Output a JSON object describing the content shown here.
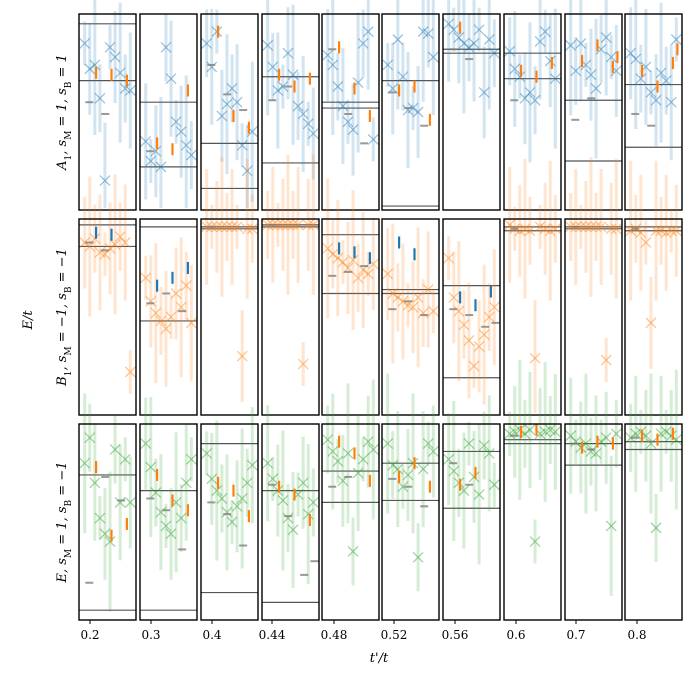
{
  "chart_data": {
    "type": "scatter",
    "xlabel": "t'/t",
    "ylabel": "E/t",
    "grid": false,
    "legend": "none",
    "x_categories": [
      "0.2",
      "0.3",
      "0.4",
      "0.44",
      "0.48",
      "0.52",
      "0.56",
      "0.6",
      "0.7",
      "0.8"
    ],
    "rows": [
      {
        "label": "A_1, s_M = 1, s_B = 1",
        "label_parts": [
          "A",
          "1",
          ", s",
          "M",
          " = 1, s",
          "B",
          " = 1"
        ],
        "color": "#1f77b4",
        "markers_per_panel": [
          [
            0.85,
            0.72,
            0.74,
            0.57,
            0.15,
            0.83,
            0.78,
            0.7,
            0.62,
            0.61
          ],
          [
            0.35,
            0.25,
            0.3,
            0.22,
            0.83,
            0.67,
            0.45,
            0.4,
            0.33,
            0.28
          ],
          [
            0.85,
            0.73,
            0.91,
            0.48,
            0.54,
            0.62,
            0.55,
            0.33,
            0.2,
            0.4
          ],
          [
            0.84,
            0.73,
            0.61,
            0.63,
            0.8,
            0.69,
            0.53,
            0.49,
            0.44,
            0.39
          ],
          [
            0.79,
            0.74,
            0.63,
            0.53,
            0.45,
            0.41,
            0.65,
            0.85,
            0.91,
            0.36
          ],
          [
            0.74,
            0.62,
            0.87,
            0.68,
            0.51,
            0.52,
            0.5,
            0.91,
            0.9,
            0.78
          ],
          [
            0.95,
            0.92,
            0.88,
            0.85,
            0.83,
            0.85,
            0.92,
            0.6,
            0.87,
            0.8
          ],
          [
            0.81,
            0.72,
            0.68,
            0.57,
            0.6,
            0.56,
            0.86,
            0.91,
            0.76,
            0.67
          ],
          [
            0.84,
            0.71,
            0.85,
            0.74,
            0.69,
            0.62,
            0.82,
            0.88,
            0.78,
            0.71
          ],
          [
            0.8,
            0.77,
            0.67,
            0.73,
            0.6,
            0.56,
            0.7,
            0.66,
            0.55,
            0.87
          ]
        ],
        "orange_bars_per_panel": [
          [
            0.7,
            0.69,
            0.66
          ],
          [
            0.34,
            0.31,
            0.61
          ],
          [
            0.91,
            0.48,
            0.42
          ],
          [
            0.69,
            0.63,
            0.67
          ],
          [
            0.83,
            0.62,
            0.48
          ],
          [
            0.61,
            0.63,
            0.46
          ],
          [
            0.93
          ],
          [
            0.71,
            0.68,
            0.75
          ],
          [
            0.76,
            0.84,
            0.73,
            0.78
          ],
          [
            0.71,
            0.63,
            0.75,
            0.82
          ]
        ],
        "gray_bars_per_panel": [
          [
            0.55,
            0.49
          ],
          [
            0.3
          ],
          [
            0.74,
            0.59,
            0.51
          ],
          [
            0.56,
            0.63
          ],
          [
            0.82,
            0.49,
            0.34
          ],
          [
            0.6,
            0.52,
            0.43
          ],
          [
            0.82,
            0.77
          ],
          [
            0.56
          ],
          [
            0.46,
            0.57
          ],
          [
            0.49,
            0.43
          ]
        ],
        "hlines_per_panel": [
          [
            0.95,
            0.66
          ],
          [
            0.55,
            0.22
          ],
          [
            0.34,
            0.11
          ],
          [
            0.68,
            0.24
          ],
          [
            0.55,
            0.52
          ],
          [
            0.66,
            0.02
          ],
          [
            0.8,
            0.82
          ],
          [
            0.8,
            0.67
          ],
          [
            0.56,
            0.25
          ],
          [
            0.64,
            0.32
          ]
        ]
      },
      {
        "label": "B_1, s_M = −1, s_B = −1",
        "label_parts": [
          "B",
          "1",
          ", s",
          "M",
          " = −1, s",
          "B",
          " = −1"
        ],
        "color": "#ff7f0e",
        "markers_per_panel": [
          [
            0.88,
            0.86,
            0.9,
            0.83,
            0.82,
            0.85,
            0.87,
            0.91,
            0.88,
            0.22
          ],
          [
            0.7,
            0.58,
            0.52,
            0.48,
            0.44,
            0.5,
            0.62,
            0.55,
            0.66,
            0.47
          ],
          [
            0.96,
            0.96,
            0.96,
            0.96,
            0.96,
            0.96,
            0.96,
            0.3,
            0.95,
            0.95
          ],
          [
            0.97,
            0.97,
            0.97,
            0.97,
            0.97,
            0.97,
            0.97,
            0.26,
            0.97,
            0.97
          ],
          [
            0.85,
            0.82,
            0.8,
            0.78,
            0.75,
            0.79,
            0.7,
            0.74,
            0.72,
            0.77
          ],
          [
            0.72,
            0.62,
            0.6,
            0.58,
            0.56,
            0.55,
            0.6,
            0.52,
            0.64,
            0.53
          ],
          [
            0.8,
            0.6,
            0.53,
            0.46,
            0.38,
            0.25,
            0.35,
            0.41,
            0.5,
            0.55
          ],
          [
            0.97,
            0.95,
            0.94,
            0.95,
            0.94,
            0.29,
            0.96,
            0.95,
            0.94,
            0.95
          ],
          [
            0.96,
            0.96,
            0.96,
            0.96,
            0.96,
            0.96,
            0.96,
            0.28,
            0.95,
            0.95
          ],
          [
            0.94,
            0.95,
            0.93,
            0.88,
            0.47,
            0.94,
            0.94,
            0.93,
            0.94,
            0.94
          ]
        ],
        "blue_bars_per_panel": [
          [
            0.93,
            0.92
          ],
          [
            0.66,
            0.7,
            0.75
          ],
          [],
          [],
          [
            0.85,
            0.83,
            0.8
          ],
          [
            0.88,
            0.82
          ],
          [
            0.6,
            0.56,
            0.63
          ],
          [],
          [],
          []
        ],
        "gray_bars_per_panel": [
          [
            0.88,
            0.84
          ],
          [
            0.57,
            0.62,
            0.53
          ],
          [
            0.96
          ],
          [
            0.97
          ],
          [
            0.71,
            0.73,
            0.76
          ],
          [
            0.54,
            0.58,
            0.51
          ],
          [
            0.54,
            0.51,
            0.45,
            0.47
          ],
          [
            0.95
          ],
          [
            0.96
          ],
          [
            0.95
          ]
        ],
        "hlines_per_panel": [
          [
            0.97,
            0.86
          ],
          [
            0.96,
            0.48
          ],
          [
            0.96,
            0.95
          ],
          [
            0.97,
            0.96
          ],
          [
            0.92,
            0.62
          ],
          [
            0.64,
            0.62
          ],
          [
            0.66,
            0.19
          ],
          [
            0.96,
            0.94
          ],
          [
            0.96,
            0.95
          ],
          [
            0.96,
            0.94
          ]
        ]
      },
      {
        "label": "E, s_M = 1, s_B = −1",
        "label_parts": [
          "E",
          "",
          ", s",
          "M",
          " = 1, s",
          "B",
          " = −1"
        ],
        "color": "#2ca02c",
        "markers_per_panel": [
          [
            0.8,
            0.93,
            0.7,
            0.52,
            0.44,
            0.4,
            0.87,
            0.6,
            0.82,
            0.6
          ],
          [
            0.9,
            0.78,
            0.65,
            0.55,
            0.48,
            0.44,
            0.6,
            0.52,
            0.7,
            0.82
          ],
          [
            0.85,
            0.72,
            0.66,
            0.62,
            0.55,
            0.5,
            0.58,
            0.62,
            0.7,
            0.79
          ],
          [
            0.8,
            0.72,
            0.66,
            0.61,
            0.52,
            0.46,
            0.64,
            0.7,
            0.54,
            0.6
          ],
          [
            0.92,
            0.86,
            0.81,
            0.71,
            0.85,
            0.35,
            0.75,
            0.82,
            0.91,
            0.87
          ],
          [
            0.9,
            0.79,
            0.77,
            0.68,
            0.74,
            0.8,
            0.32,
            0.77,
            0.9,
            0.86
          ],
          [
            0.82,
            0.76,
            0.7,
            0.66,
            0.9,
            0.73,
            0.64,
            0.89,
            0.85,
            0.69
          ],
          [
            0.95,
            0.96,
            0.97,
            0.95,
            0.97,
            0.4,
            0.95,
            0.96,
            0.97,
            0.96
          ],
          [
            0.94,
            0.91,
            0.88,
            0.9,
            0.86,
            0.85,
            0.91,
            0.93,
            0.48,
            0.95
          ],
          [
            0.93,
            0.95,
            0.96,
            0.94,
            0.9,
            0.47,
            0.95,
            0.96,
            0.94,
            0.92
          ]
        ],
        "orange_bars_per_panel": [
          [
            0.78,
            0.43,
            0.49
          ],
          [
            0.74,
            0.61,
            0.56
          ],
          [
            0.7,
            0.66,
            0.53
          ],
          [
            0.68,
            0.64,
            0.51
          ],
          [
            0.91,
            0.85,
            0.71
          ],
          [
            0.73,
            0.8,
            0.68
          ],
          [
            0.69,
            0.75
          ],
          [
            0.96,
            0.97
          ],
          [
            0.88,
            0.91,
            0.9
          ],
          [
            0.94,
            0.92,
            0.95
          ]
        ],
        "gray_bars_per_panel": [
          [
            0.19,
            0.73,
            0.61
          ],
          [
            0.62,
            0.56,
            0.36
          ],
          [
            0.6,
            0.54,
            0.38
          ],
          [
            0.69,
            0.53,
            0.23,
            0.3
          ],
          [
            0.68,
            0.73
          ],
          [
            0.72,
            0.68,
            0.58
          ],
          [
            0.8,
            0.69
          ],
          [
            0.94
          ],
          [
            0.9,
            0.87
          ],
          [
            0.93,
            0.91
          ]
        ],
        "hlines_per_panel": [
          [
            0.74,
            0.05
          ],
          [
            0.66,
            0.05
          ],
          [
            0.9,
            0.14
          ],
          [
            0.66,
            0.09
          ],
          [
            0.76,
            0.6
          ],
          [
            0.8,
            0.61
          ],
          [
            0.86,
            0.57
          ],
          [
            0.92,
            0.9
          ],
          [
            0.9,
            0.79
          ],
          [
            0.87,
            0.91
          ]
        ]
      }
    ]
  }
}
